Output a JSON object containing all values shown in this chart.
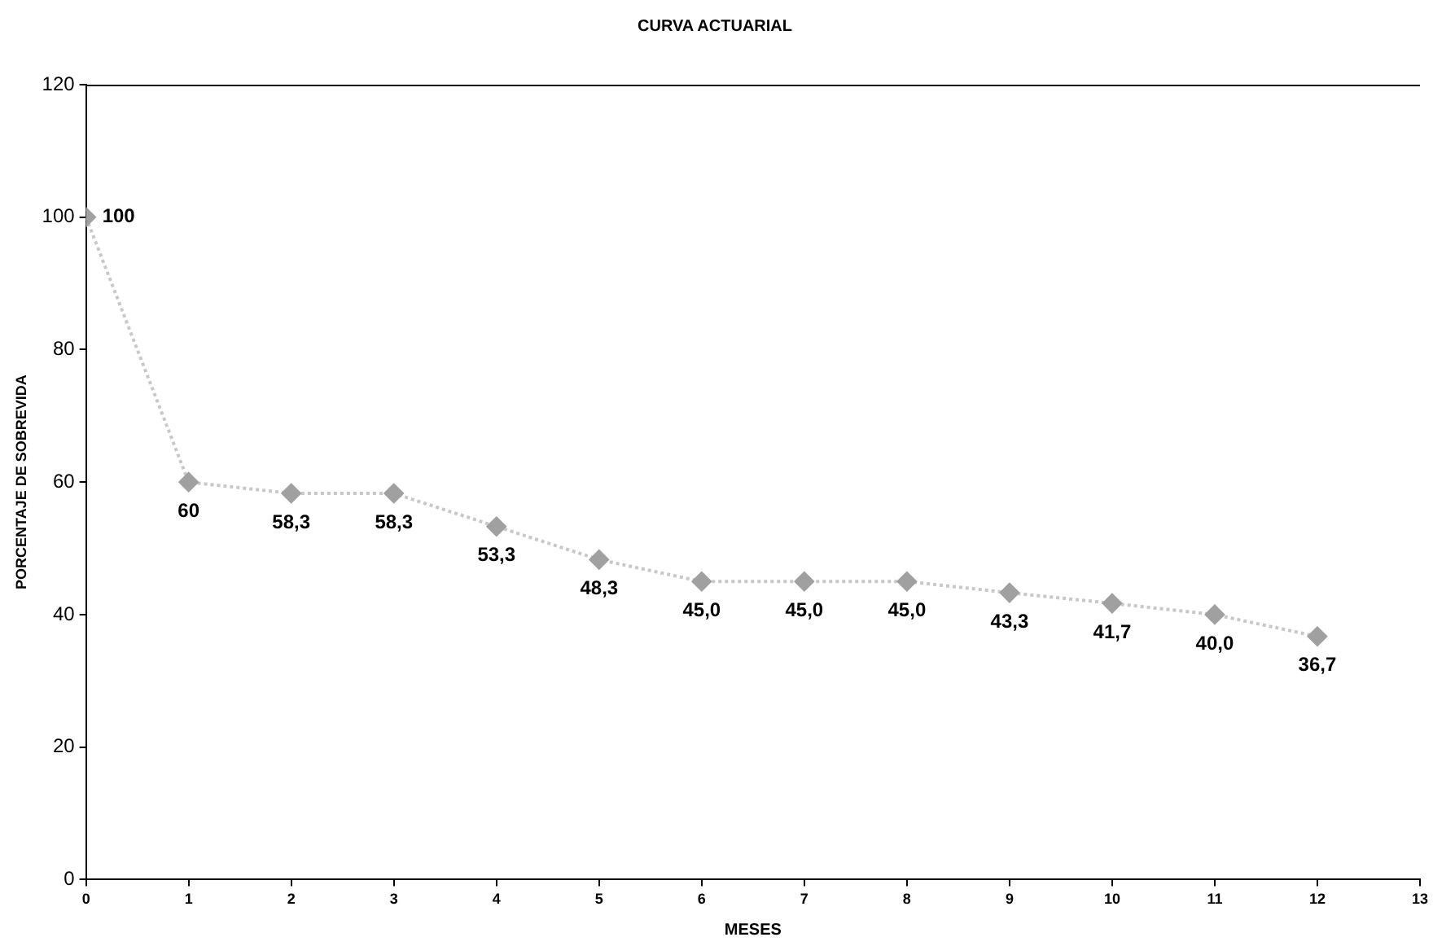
{
  "chart_data": {
    "type": "line",
    "title": "CURVA ACTUARIAL",
    "xlabel": "MESES",
    "ylabel": "PORCENTAJE DE SOBREVIDA",
    "x": [
      0,
      1,
      2,
      3,
      4,
      5,
      6,
      7,
      8,
      9,
      10,
      11,
      12
    ],
    "series": [
      {
        "color": "#a0a0a0",
        "values": [
          100,
          60,
          58.3,
          58.3,
          53.3,
          48.3,
          45.0,
          45.0,
          45.0,
          43.3,
          41.7,
          40.0,
          36.7
        ],
        "value_labels": [
          "100",
          "60",
          "58,3",
          "58,3",
          "53,3",
          "48,3",
          "45,0",
          "45,0",
          "45,0",
          "43,3",
          "41,7",
          "40,0",
          "36,7"
        ]
      }
    ],
    "xlim": [
      0,
      13
    ],
    "xticks": [
      0,
      1,
      2,
      3,
      4,
      5,
      6,
      7,
      8,
      9,
      10,
      11,
      12,
      13
    ],
    "ylim": [
      0,
      120
    ],
    "yticks": [
      0,
      20,
      40,
      60,
      80,
      100,
      120
    ],
    "grid": false,
    "legend": false,
    "marker": "diamond",
    "line_style": "dotted"
  }
}
